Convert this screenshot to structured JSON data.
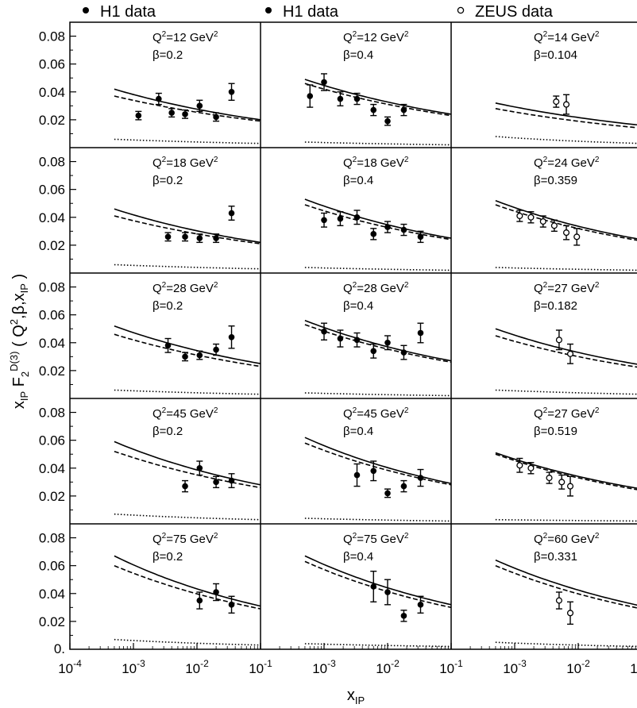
{
  "legend": [
    {
      "label": "H1 data",
      "marker": "filled"
    },
    {
      "label": "H1 data",
      "marker": "filled"
    },
    {
      "label": "ZEUS data",
      "marker": "open"
    }
  ],
  "axes": {
    "y_title": "x_IP F_2^D(3) (Q^2, β, x_IP)",
    "x_title": "x_IP",
    "y_ticks": [
      "0.08",
      "0.06",
      "0.04",
      "0.02",
      "0."
    ],
    "x_ticks": [
      "10^-4",
      "10^-3",
      "10^-2",
      "10^-1"
    ]
  },
  "chart_data": {
    "type": "scatter",
    "xscale": "log",
    "xlim": [
      0.0001,
      0.1
    ],
    "ylim": [
      0,
      0.09
    ],
    "grid": false,
    "legend_position": "top",
    "columns": [
      "H1 data",
      "H1 data",
      "ZEUS data"
    ],
    "curve_styles": [
      "solid",
      "dashed",
      "dotted"
    ],
    "panels": [
      {
        "row": 0,
        "col": 0,
        "q2": "Q²=12 GeV²",
        "beta": "β=0.2",
        "marker": "filled",
        "points": [
          [
            0.0012,
            0.023,
            0.003
          ],
          [
            0.0025,
            0.035,
            0.004
          ],
          [
            0.004,
            0.025,
            0.003
          ],
          [
            0.0065,
            0.024,
            0.003
          ],
          [
            0.011,
            0.03,
            0.004
          ],
          [
            0.02,
            0.022,
            0.003
          ],
          [
            0.035,
            0.04,
            0.006
          ]
        ],
        "curve_solid": [
          [
            0.0005,
            0.042
          ],
          [
            0.1,
            0.02
          ]
        ],
        "curve_dashed": [
          [
            0.0005,
            0.037
          ],
          [
            0.1,
            0.019
          ]
        ],
        "curve_dotted": [
          [
            0.0005,
            0.006
          ],
          [
            0.1,
            0.003
          ]
        ]
      },
      {
        "row": 0,
        "col": 1,
        "q2": "Q²=12 GeV²",
        "beta": "β=0.4",
        "marker": "filled",
        "points": [
          [
            0.0006,
            0.037,
            0.008
          ],
          [
            0.001,
            0.047,
            0.006
          ],
          [
            0.0018,
            0.035,
            0.005
          ],
          [
            0.0033,
            0.035,
            0.004
          ],
          [
            0.006,
            0.027,
            0.004
          ],
          [
            0.01,
            0.019,
            0.003
          ],
          [
            0.018,
            0.027,
            0.004
          ]
        ],
        "curve_solid": [
          [
            0.0005,
            0.049
          ],
          [
            0.1,
            0.024
          ]
        ],
        "curve_dashed": [
          [
            0.0005,
            0.046
          ],
          [
            0.1,
            0.023
          ]
        ],
        "curve_dotted": [
          [
            0.0005,
            0.004
          ],
          [
            0.1,
            0.002
          ]
        ]
      },
      {
        "row": 0,
        "col": 2,
        "q2": "Q²=14 GeV²",
        "beta": "β=0.104",
        "marker": "open",
        "points": [
          [
            0.0045,
            0.033,
            0.004
          ],
          [
            0.0065,
            0.031,
            0.007
          ]
        ],
        "curve_solid": [
          [
            0.0005,
            0.032
          ],
          [
            0.1,
            0.016
          ]
        ],
        "curve_dashed": [
          [
            0.0005,
            0.028
          ],
          [
            0.1,
            0.014
          ]
        ],
        "curve_dotted": [
          [
            0.0005,
            0.008
          ],
          [
            0.1,
            0.003
          ]
        ]
      },
      {
        "row": 1,
        "col": 0,
        "q2": "Q²=18 GeV²",
        "beta": "β=0.2",
        "marker": "filled",
        "points": [
          [
            0.0035,
            0.026,
            0.003
          ],
          [
            0.0065,
            0.026,
            0.003
          ],
          [
            0.011,
            0.025,
            0.003
          ],
          [
            0.02,
            0.025,
            0.003
          ],
          [
            0.035,
            0.043,
            0.005
          ]
        ],
        "curve_solid": [
          [
            0.0005,
            0.046
          ],
          [
            0.1,
            0.022
          ]
        ],
        "curve_dashed": [
          [
            0.0005,
            0.041
          ],
          [
            0.1,
            0.021
          ]
        ],
        "curve_dotted": [
          [
            0.0005,
            0.006
          ],
          [
            0.1,
            0.003
          ]
        ]
      },
      {
        "row": 1,
        "col": 1,
        "q2": "Q²=18 GeV²",
        "beta": "β=0.4",
        "marker": "filled",
        "points": [
          [
            0.001,
            0.038,
            0.005
          ],
          [
            0.0018,
            0.039,
            0.005
          ],
          [
            0.0033,
            0.04,
            0.005
          ],
          [
            0.006,
            0.028,
            0.004
          ],
          [
            0.01,
            0.033,
            0.004
          ],
          [
            0.018,
            0.031,
            0.004
          ],
          [
            0.033,
            0.026,
            0.004
          ]
        ],
        "curve_solid": [
          [
            0.0005,
            0.053
          ],
          [
            0.1,
            0.025
          ]
        ],
        "curve_dashed": [
          [
            0.0005,
            0.049
          ],
          [
            0.1,
            0.024
          ]
        ],
        "curve_dotted": [
          [
            0.0005,
            0.004
          ],
          [
            0.1,
            0.002
          ]
        ]
      },
      {
        "row": 1,
        "col": 2,
        "q2": "Q²=24 GeV²",
        "beta": "β=0.359",
        "marker": "open",
        "points": [
          [
            0.0012,
            0.041,
            0.004
          ],
          [
            0.0018,
            0.04,
            0.004
          ],
          [
            0.0028,
            0.037,
            0.004
          ],
          [
            0.0042,
            0.034,
            0.004
          ],
          [
            0.0065,
            0.029,
            0.005
          ],
          [
            0.0095,
            0.026,
            0.006
          ]
        ],
        "curve_solid": [
          [
            0.0005,
            0.052
          ],
          [
            0.1,
            0.024
          ]
        ],
        "curve_dashed": [
          [
            0.0005,
            0.049
          ],
          [
            0.1,
            0.023
          ]
        ],
        "curve_dotted": [
          [
            0.0005,
            0.004
          ],
          [
            0.1,
            0.002
          ]
        ]
      },
      {
        "row": 2,
        "col": 0,
        "q2": "Q²=28 GeV²",
        "beta": "β=0.2",
        "marker": "filled",
        "points": [
          [
            0.0035,
            0.038,
            0.005
          ],
          [
            0.0065,
            0.03,
            0.003
          ],
          [
            0.011,
            0.031,
            0.003
          ],
          [
            0.02,
            0.035,
            0.004
          ],
          [
            0.035,
            0.044,
            0.008
          ]
        ],
        "curve_solid": [
          [
            0.0005,
            0.052
          ],
          [
            0.1,
            0.025
          ]
        ],
        "curve_dashed": [
          [
            0.0005,
            0.046
          ],
          [
            0.1,
            0.023
          ]
        ],
        "curve_dotted": [
          [
            0.0005,
            0.006
          ],
          [
            0.1,
            0.003
          ]
        ]
      },
      {
        "row": 2,
        "col": 1,
        "q2": "Q²=28 GeV²",
        "beta": "β=0.4",
        "marker": "filled",
        "points": [
          [
            0.001,
            0.048,
            0.006
          ],
          [
            0.0018,
            0.043,
            0.006
          ],
          [
            0.0033,
            0.042,
            0.005
          ],
          [
            0.006,
            0.034,
            0.005
          ],
          [
            0.01,
            0.04,
            0.005
          ],
          [
            0.018,
            0.033,
            0.005
          ],
          [
            0.033,
            0.047,
            0.007
          ]
        ],
        "curve_solid": [
          [
            0.0005,
            0.056
          ],
          [
            0.1,
            0.027
          ]
        ],
        "curve_dashed": [
          [
            0.0005,
            0.053
          ],
          [
            0.1,
            0.026
          ]
        ],
        "curve_dotted": [
          [
            0.0005,
            0.004
          ],
          [
            0.1,
            0.002
          ]
        ]
      },
      {
        "row": 2,
        "col": 2,
        "q2": "Q²=27 GeV²",
        "beta": "β=0.182",
        "marker": "open",
        "points": [
          [
            0.005,
            0.042,
            0.007
          ],
          [
            0.0075,
            0.032,
            0.007
          ]
        ],
        "curve_solid": [
          [
            0.0005,
            0.05
          ],
          [
            0.1,
            0.024
          ]
        ],
        "curve_dashed": [
          [
            0.0005,
            0.045
          ],
          [
            0.1,
            0.022
          ]
        ],
        "curve_dotted": [
          [
            0.0005,
            0.006
          ],
          [
            0.1,
            0.003
          ]
        ]
      },
      {
        "row": 3,
        "col": 0,
        "q2": "Q²=45 GeV²",
        "beta": "β=0.2",
        "marker": "filled",
        "points": [
          [
            0.0065,
            0.027,
            0.004
          ],
          [
            0.011,
            0.04,
            0.005
          ],
          [
            0.02,
            0.03,
            0.004
          ],
          [
            0.035,
            0.031,
            0.005
          ]
        ],
        "curve_solid": [
          [
            0.0005,
            0.059
          ],
          [
            0.1,
            0.028
          ]
        ],
        "curve_dashed": [
          [
            0.0005,
            0.052
          ],
          [
            0.1,
            0.026
          ]
        ],
        "curve_dotted": [
          [
            0.0005,
            0.007
          ],
          [
            0.1,
            0.003
          ]
        ]
      },
      {
        "row": 3,
        "col": 1,
        "q2": "Q²=45 GeV²",
        "beta": "β=0.4",
        "marker": "filled",
        "points": [
          [
            0.0033,
            0.035,
            0.008
          ],
          [
            0.006,
            0.038,
            0.007
          ],
          [
            0.01,
            0.022,
            0.003
          ],
          [
            0.018,
            0.027,
            0.004
          ],
          [
            0.033,
            0.033,
            0.006
          ]
        ],
        "curve_solid": [
          [
            0.0005,
            0.062
          ],
          [
            0.1,
            0.029
          ]
        ],
        "curve_dashed": [
          [
            0.0005,
            0.058
          ],
          [
            0.1,
            0.028
          ]
        ],
        "curve_dotted": [
          [
            0.0005,
            0.004
          ],
          [
            0.1,
            0.002
          ]
        ]
      },
      {
        "row": 3,
        "col": 2,
        "q2": "Q²=27 GeV²",
        "beta": "β=0.519",
        "marker": "open",
        "points": [
          [
            0.0012,
            0.042,
            0.005
          ],
          [
            0.0018,
            0.04,
            0.004
          ],
          [
            0.0035,
            0.033,
            0.004
          ],
          [
            0.0055,
            0.03,
            0.005
          ],
          [
            0.0075,
            0.027,
            0.007
          ]
        ],
        "curve_solid": [
          [
            0.0005,
            0.051
          ],
          [
            0.1,
            0.025
          ]
        ],
        "curve_dashed": [
          [
            0.0005,
            0.05
          ],
          [
            0.1,
            0.024
          ]
        ],
        "curve_dotted": [
          [
            0.0005,
            0.003
          ],
          [
            0.1,
            0.002
          ]
        ]
      },
      {
        "row": 4,
        "col": 0,
        "q2": "Q²=75 GeV²",
        "beta": "β=0.2",
        "marker": "filled",
        "points": [
          [
            0.011,
            0.035,
            0.006
          ],
          [
            0.02,
            0.041,
            0.006
          ],
          [
            0.035,
            0.032,
            0.006
          ]
        ],
        "curve_solid": [
          [
            0.0005,
            0.067
          ],
          [
            0.1,
            0.031
          ]
        ],
        "curve_dashed": [
          [
            0.0005,
            0.06
          ],
          [
            0.1,
            0.029
          ]
        ],
        "curve_dotted": [
          [
            0.0005,
            0.007
          ],
          [
            0.1,
            0.003
          ]
        ]
      },
      {
        "row": 4,
        "col": 1,
        "q2": "Q²=75 GeV²",
        "beta": "β=0.4",
        "marker": "filled",
        "points": [
          [
            0.006,
            0.045,
            0.011
          ],
          [
            0.01,
            0.041,
            0.009
          ],
          [
            0.018,
            0.024,
            0.004
          ],
          [
            0.033,
            0.032,
            0.006
          ]
        ],
        "curve_solid": [
          [
            0.0005,
            0.067
          ],
          [
            0.1,
            0.032
          ]
        ],
        "curve_dashed": [
          [
            0.0005,
            0.063
          ],
          [
            0.1,
            0.03
          ]
        ],
        "curve_dotted": [
          [
            0.0005,
            0.004
          ],
          [
            0.1,
            0.002
          ]
        ]
      },
      {
        "row": 4,
        "col": 2,
        "q2": "Q²=60 GeV²",
        "beta": "β=0.331",
        "marker": "open",
        "points": [
          [
            0.005,
            0.035,
            0.006
          ],
          [
            0.0075,
            0.026,
            0.008
          ]
        ],
        "curve_solid": [
          [
            0.0005,
            0.064
          ],
          [
            0.1,
            0.031
          ]
        ],
        "curve_dashed": [
          [
            0.0005,
            0.06
          ],
          [
            0.1,
            0.029
          ]
        ],
        "curve_dotted": [
          [
            0.0005,
            0.005
          ],
          [
            0.1,
            0.002
          ]
        ]
      }
    ]
  }
}
